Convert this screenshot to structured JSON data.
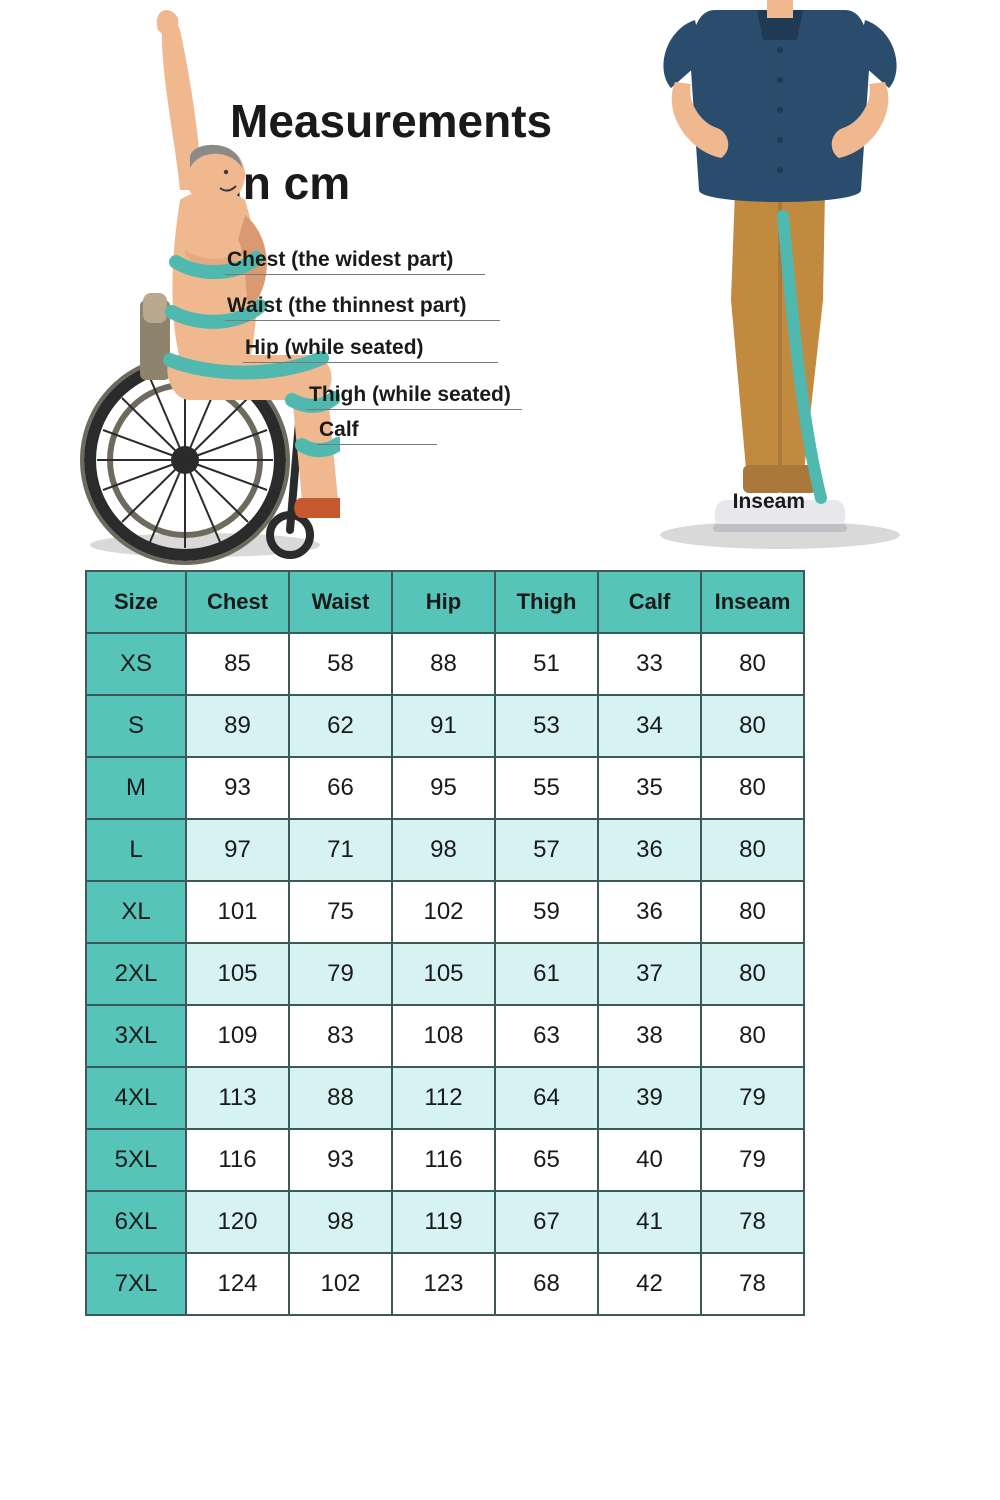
{
  "title_line1": "Measurements",
  "title_line2": "in cm",
  "labels": {
    "chest": "Chest (the widest part)",
    "waist": "Waist (the thinnest part)",
    "hip": "Hip (while seated)",
    "thigh": "Thigh (while seated)",
    "calf": "Calf",
    "inseam": "Inseam"
  },
  "table": {
    "columns": [
      "Size",
      "Chest",
      "Waist",
      "Hip",
      "Thigh",
      "Calf",
      "Inseam"
    ],
    "rows": [
      [
        "XS",
        "85",
        "58",
        "88",
        "51",
        "33",
        "80"
      ],
      [
        "S",
        "89",
        "62",
        "91",
        "53",
        "34",
        "80"
      ],
      [
        "M",
        "93",
        "66",
        "95",
        "55",
        "35",
        "80"
      ],
      [
        "L",
        "97",
        "71",
        "98",
        "57",
        "36",
        "80"
      ],
      [
        "XL",
        "101",
        "75",
        "102",
        "59",
        "36",
        "80"
      ],
      [
        "2XL",
        "105",
        "79",
        "105",
        "61",
        "37",
        "80"
      ],
      [
        "3XL",
        "109",
        "83",
        "108",
        "63",
        "38",
        "80"
      ],
      [
        "4XL",
        "113",
        "88",
        "112",
        "64",
        "39",
        "79"
      ],
      [
        "5XL",
        "116",
        "93",
        "116",
        "65",
        "40",
        "79"
      ],
      [
        "6XL",
        "120",
        "98",
        "119",
        "67",
        "41",
        "78"
      ],
      [
        "7XL",
        "124",
        "102",
        "123",
        "68",
        "42",
        "78"
      ]
    ],
    "header_bg": "#56c4b9",
    "size_col_bg": "#56c4b9",
    "row_alt_bg": "#d6f3f1",
    "row_bg": "#ffffff",
    "border_color": "#3d5a5a",
    "text_color": "#1a1a1a"
  },
  "illustration_colors": {
    "skin": "#f0b88f",
    "skin_shadow": "#d99a72",
    "hair": "#8a8a8a",
    "measure_band": "#4fb9af",
    "wheel_dark": "#2b2b2b",
    "wheel_mid": "#6e6a5e",
    "seat": "#b8a98f",
    "seat_dark": "#8e836c",
    "shirt": "#2a4d6e",
    "pants": "#c18a3f",
    "pants_cuff": "#a9783a",
    "shoe": "#e8e8ec",
    "shoe_sole": "#bfbfc6",
    "floor_shadow": "#d9d9d9"
  }
}
